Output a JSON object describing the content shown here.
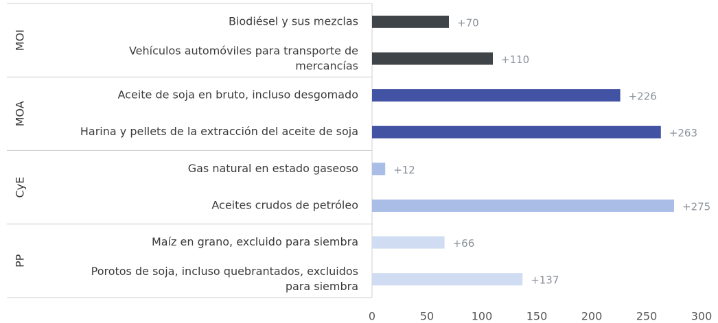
{
  "chart_data": {
    "type": "bar",
    "groups": [
      {
        "name": "MOI",
        "color": "#3f4448",
        "categories": [
          "Biodiésel y sus mezclas",
          "Vehículos automóviles para transporte de\nmercancías"
        ],
        "values": [
          70,
          110
        ],
        "value_labels": [
          "+70",
          "+110"
        ]
      },
      {
        "name": "MOA",
        "color": "#4353a3",
        "categories": [
          "Aceite de soja en bruto, incluso desgomado",
          "Harina y pellets de la extracción del aceite de soja"
        ],
        "values": [
          226,
          263
        ],
        "value_labels": [
          "+226",
          "+263"
        ]
      },
      {
        "name": "CyE",
        "color": "#a9bde6",
        "categories": [
          "Gas natural en estado gaseoso",
          "Aceites crudos de petróleo"
        ],
        "values": [
          12,
          275
        ],
        "value_labels": [
          "+12",
          "+275"
        ]
      },
      {
        "name": "PP",
        "color": "#d0dcf2",
        "categories": [
          "Maíz en grano, excluido para siembra",
          "Porotos de soja, incluso quebrantados, excluidos\npara siembra"
        ],
        "values": [
          66,
          137
        ],
        "value_labels": [
          "+66",
          "+137"
        ]
      }
    ],
    "xlim": [
      0,
      300
    ],
    "xticks": [
      0,
      50,
      100,
      150,
      200,
      250,
      300
    ]
  }
}
